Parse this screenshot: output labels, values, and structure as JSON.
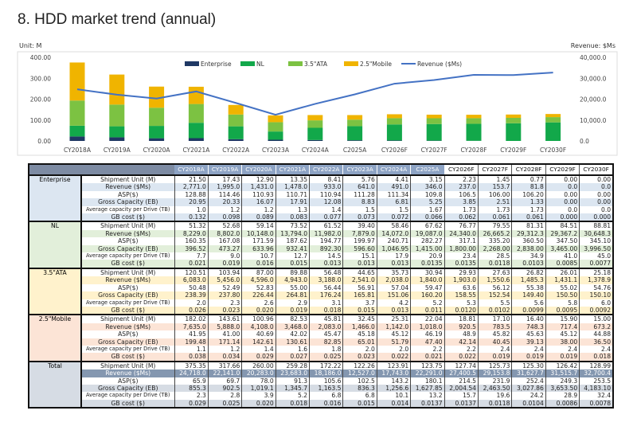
{
  "title": "8. HDD market trend (annual)",
  "chart_data": {
    "type": "bar",
    "left_unit": "Unit: M",
    "right_unit": "Revenue: $Ms",
    "stacked": true,
    "categories": [
      "CY2018A",
      "CY2019A",
      "CY2020A",
      "CY2021A",
      "CY2022A",
      "CY2023A",
      "CY2024A",
      "C2025A",
      "CY2026F",
      "CY2027F",
      "CY2028F",
      "CY2029F",
      "CY2030F"
    ],
    "y_ticks": [
      "400.00",
      "300.00",
      "200.00",
      "100.00",
      "0.00"
    ],
    "y2_ticks": [
      "40,000.0",
      "30,000.0",
      "20,000.0",
      "10,000.0",
      "0.0"
    ],
    "ylim": [
      0,
      400
    ],
    "y2lim": [
      0,
      40000
    ],
    "legend_position": "top-center",
    "series": [
      {
        "name": "Enterprise",
        "color": "#1f3864",
        "values": [
          21.5,
          17.43,
          12.9,
          13.35,
          8.41,
          5.76,
          4.41,
          3.15,
          2.23,
          1.45,
          0.77,
          0,
          0
        ]
      },
      {
        "name": "NL",
        "color": "#12a84a",
        "values": [
          51.32,
          52.68,
          59.14,
          73.52,
          61.52,
          39.4,
          58.46,
          67.62,
          76.77,
          79.55,
          81.31,
          84.51,
          88.81
        ]
      },
      {
        "name": "3.5\"ATA",
        "color": "#7cc242",
        "values": [
          120.51,
          103.94,
          87.0,
          89.88,
          56.48,
          44.65,
          35.73,
          30.94,
          29.93,
          27.63,
          26.82,
          26.01,
          25.18
        ]
      },
      {
        "name": "2.5\"Mobile",
        "color": "#f0b400",
        "values": [
          182.02,
          143.61,
          100.96,
          82.53,
          45.81,
          32.45,
          25.31,
          22.04,
          18.81,
          17.1,
          16.4,
          15.9,
          15.0
        ]
      },
      {
        "name": "Revenue ($Ms)",
        "type": "line",
        "axis": "right",
        "color": "#4472c4",
        "values": [
          24718.0,
          22141.0,
          20283.0,
          23683.0,
          18186.0,
          12527.0,
          17743.0,
          22291.0,
          27400.5,
          29153.8,
          31627.7,
          31515.7,
          32700.4
        ]
      }
    ]
  },
  "table": {
    "columns": [
      "CY2018A",
      "CY2019A",
      "CY2020A",
      "CY2021A",
      "CY2022A",
      "CY2023A",
      "CY2024A",
      "C2025A",
      "CY2026F",
      "CY2027F",
      "CY2028F",
      "CY2029F",
      "CY2030F"
    ],
    "actual_count": 8,
    "groups": [
      {
        "name": "Enterprise",
        "bg": "#dce6f1",
        "alt": "#ffffff",
        "rows": [
          {
            "label": "Shipment Unit (M)",
            "values": [
              "21.50",
              "17.43",
              "12.90",
              "13.35",
              "8.41",
              "5.76",
              "4.41",
              "3.15",
              "2.23",
              "1.45",
              "0.77",
              "0.00",
              "0.00"
            ]
          },
          {
            "label": "Revenue ($Ms)",
            "values": [
              "2,771.0",
              "1,995.0",
              "1,431.0",
              "1,478.0",
              "933.0",
              "641.0",
              "491.0",
              "346.0",
              "237.0",
              "153.7",
              "81.8",
              "0.0",
              "0.0"
            ]
          },
          {
            "label": "ASP($)",
            "values": [
              "128.88",
              "114.46",
              "110.93",
              "110.71",
              "110.94",
              "111.28",
              "111.34",
              "109.8",
              "106.5",
              "106.00",
              "106.20",
              "0.00",
              "0.00"
            ]
          },
          {
            "label": "Gross Capacity (EB)",
            "values": [
              "20.95",
              "20.33",
              "16.07",
              "17.91",
              "12.08",
              "8.83",
              "6.81",
              "5.25",
              "3.85",
              "2.51",
              "1.33",
              "0.00",
              "0.00"
            ]
          },
          {
            "label": "Average capacity per Drive (TB)",
            "values": [
              "1.0",
              "1.2",
              "1.2",
              "1.3",
              "1.4",
              "1.5",
              "1.5",
              "1.67",
              "1.73",
              "1.73",
              "1.73",
              "0.0",
              "0.0"
            ]
          },
          {
            "label": "GB cost ($)",
            "values": [
              "0.132",
              "0.098",
              "0.089",
              "0.083",
              "0.077",
              "0.073",
              "0.072",
              "0.066",
              "0.062",
              "0.061",
              "0.061",
              "0.000",
              "0.000"
            ]
          }
        ]
      },
      {
        "name": "NL",
        "bg": "#e2efda",
        "alt": "#ffffff",
        "rows": [
          {
            "label": "Shipment Unit (M)",
            "values": [
              "51.32",
              "52.68",
              "59.14",
              "73.52",
              "61.52",
              "39.40",
              "58.46",
              "67.62",
              "76.77",
              "79.55",
              "81.31",
              "84.51",
              "88.81"
            ]
          },
          {
            "label": "Revenue ($Ms)",
            "values": [
              "8,229.0",
              "8,802.0",
              "10,148.0",
              "13,794.0",
              "11,982.0",
              "7,879.0",
              "14,072.0",
              "19,087.0",
              "24,340.0",
              "26,665.2",
              "29,312.3",
              "29,367.2",
              "30,648.3"
            ]
          },
          {
            "label": "ASP($)",
            "values": [
              "160.35",
              "167.08",
              "171.59",
              "187.62",
              "194.77",
              "199.97",
              "240.71",
              "282.27",
              "317.1",
              "335.20",
              "360.50",
              "347.50",
              "345.10"
            ]
          },
          {
            "label": "Gross  Capacity (EB)",
            "values": [
              "396.52",
              "473.27",
              "633.96",
              "932.41",
              "892.30",
              "596.60",
              "1,046.95",
              "1,415.00",
              "1,800.00",
              "2,268.00",
              "2,838.00",
              "3,465.00",
              "3,996.50"
            ]
          },
          {
            "label": "Average capacity per Drive (TB)",
            "values": [
              "7.7",
              "9.0",
              "10.7",
              "12.7",
              "14.5",
              "15.1",
              "17.9",
              "20.9",
              "23.4",
              "28.5",
              "34.9",
              "41.0",
              "45.0"
            ]
          },
          {
            "label": "GB cost ($)",
            "values": [
              "0.021",
              "0.019",
              "0.016",
              "0.015",
              "0.013",
              "0.013",
              "0.013",
              "0.0135",
              "0.0135",
              "0.0118",
              "0.0103",
              "0.0085",
              "0.0077"
            ]
          }
        ]
      },
      {
        "name": "3.5\"ATA",
        "bg": "#fff2cc",
        "alt": "#ffffff",
        "rows": [
          {
            "label": "Shipment Unit (M)",
            "values": [
              "120.51",
              "103.94",
              "87.00",
              "89.88",
              "56.48",
              "44.65",
              "35.73",
              "30.94",
              "29.93",
              "27.63",
              "26.82",
              "26.01",
              "25.18"
            ]
          },
          {
            "label": "Revenue ($Ms)",
            "values": [
              "6,083.0",
              "5,456.0",
              "4,596.0",
              "4,943.0",
              "3,188.0",
              "2,541.0",
              "2,038.0",
              "1,840.0",
              "1,903.0",
              "1,550.6",
              "1,485.3",
              "1,431.1",
              "1,378.9"
            ]
          },
          {
            "label": "ASP($)",
            "values": [
              "50.48",
              "52.49",
              "52.83",
              "55.00",
              "56.44",
              "56.91",
              "57.04",
              "59.47",
              "63.6",
              "56.12",
              "55.38",
              "55.02",
              "54.76"
            ]
          },
          {
            "label": "Gross Capacity (EB)",
            "values": [
              "238.39",
              "237.80",
              "226.44",
              "264.81",
              "176.24",
              "165.81",
              "151.06",
              "160.20",
              "158.55",
              "152.54",
              "149.40",
              "150.50",
              "150.10"
            ]
          },
          {
            "label": "Average capacity per Drive (TB)",
            "values": [
              "2.0",
              "2.3",
              "2.6",
              "2.9",
              "3.1",
              "3.7",
              "4.2",
              "5.2",
              "5.3",
              "5.5",
              "5.6",
              "5.8",
              "6.0"
            ]
          },
          {
            "label": "GB cost ($)",
            "values": [
              "0.026",
              "0.023",
              "0.020",
              "0.019",
              "0.018",
              "0.015",
              "0.013",
              "0.011",
              "0.0120",
              "0.0102",
              "0.0099",
              "0.0095",
              "0.0092"
            ]
          }
        ]
      },
      {
        "name": "2.5\"Mobile",
        "bg": "#fce4d6",
        "alt": "#ffffff",
        "rows": [
          {
            "label": "Shipment Unit (M)",
            "values": [
              "182.02",
              "143.61",
              "100.96",
              "82.53",
              "45.81",
              "32.45",
              "25.31",
              "22.04",
              "18.81",
              "17.10",
              "16.40",
              "15.90",
              "15.00"
            ]
          },
          {
            "label": "Revenue ($Ms)",
            "values": [
              "7,635.0",
              "5,888.0",
              "4,108.0",
              "3,468.0",
              "2,083.0",
              "1,466.0",
              "1,142.0",
              "1,018.0",
              "920.5",
              "783.5",
              "748.3",
              "717.4",
              "673.2"
            ]
          },
          {
            "label": "ASP($)",
            "values": [
              "41.95",
              "41.00",
              "40.69",
              "42.02",
              "45.47",
              "45.18",
              "45.12",
              "46.19",
              "48.9",
              "45.82",
              "45.63",
              "45.12",
              "44.88"
            ]
          },
          {
            "label": "Gross  Capacity (EB)",
            "values": [
              "199.48",
              "171.14",
              "142.61",
              "130.61",
              "82.85",
              "65.01",
              "51.79",
              "47.40",
              "42.14",
              "40.45",
              "39.13",
              "38.00",
              "36.50"
            ]
          },
          {
            "label": "Average capacity per Drive (TB)",
            "values": [
              "1.1",
              "1.2",
              "1.4",
              "1.6",
              "1.8",
              "2.0",
              "2.0",
              "2.2",
              "2.2",
              "2.4",
              "2.4",
              "2.4",
              "2.4"
            ]
          },
          {
            "label": "GB cost ($)",
            "values": [
              "0.038",
              "0.034",
              "0.029",
              "0.027",
              "0.025",
              "0.023",
              "0.022",
              "0.021",
              "0.022",
              "0.019",
              "0.019",
              "0.019",
              "0.018"
            ]
          }
        ]
      },
      {
        "name": "Total",
        "bg": "#d6dce4",
        "alt": "#ffffff",
        "highlight_color": "#8497b0",
        "rows": [
          {
            "label": "Shipment Unit (M)",
            "values": [
              "375.35",
              "317.66",
              "260.00",
              "259.28",
              "172.22",
              "122.26",
              "123.91",
              "123.75",
              "127.74",
              "125.73",
              "125.30",
              "126.42",
              "128.99"
            ]
          },
          {
            "label": "Revenue ($Ms)",
            "highlight": true,
            "values": [
              "24,718.0",
              "22,141.0",
              "20,283.0",
              "23,683.0",
              "18,186.0",
              "12,527.0",
              "17,743.0",
              "22,291.0",
              "27,400.5",
              "29,153.8",
              "31,627.7",
              "31,515.7",
              "32,700.4"
            ]
          },
          {
            "label": "ASP($)",
            "values": [
              "65.9",
              "69.7",
              "78.0",
              "91.3",
              "105.6",
              "102.5",
              "143.2",
              "180.1",
              "214.5",
              "231.9",
              "252.4",
              "249.3",
              "253.5"
            ]
          },
          {
            "label": "Gross Capacity (EB)",
            "values": [
              "855.3",
              "902.5",
              "1,019.1",
              "1,345.7",
              "1,163.5",
              "836.3",
              "1,256.6",
              "1,627.85",
              "2,004.54",
              "2,463.50",
              "3,027.86",
              "3,653.50",
              "4,183.10"
            ]
          },
          {
            "label": "Average capacity per Drive (TB)",
            "values": [
              "2.3",
              "2.8",
              "3.9",
              "5.2",
              "6.8",
              "6.8",
              "10.1",
              "13.2",
              "15.7",
              "19.6",
              "24.2",
              "28.9",
              "32.4"
            ]
          },
          {
            "label": "GB cost ($)",
            "values": [
              "0.029",
              "0.025",
              "0.020",
              "0.018",
              "0.016",
              "0.015",
              "0.014",
              "0.0137",
              "0.0137",
              "0.0118",
              "0.0104",
              "0.0086",
              "0.0078"
            ]
          }
        ]
      }
    ]
  }
}
